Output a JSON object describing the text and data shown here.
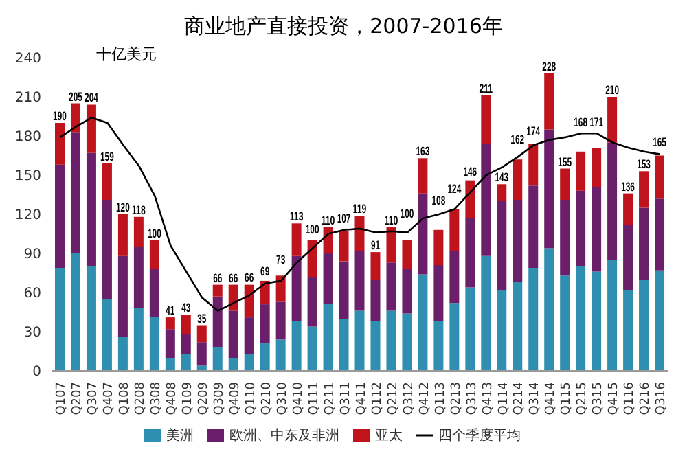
{
  "chart_data": {
    "type": "bar",
    "title": "商业地产直接投资，2007-2016年",
    "ylabel": "十亿美元",
    "categories": [
      "Q107",
      "Q207",
      "Q307",
      "Q407",
      "Q108",
      "Q208",
      "Q308",
      "Q408",
      "Q109",
      "Q209",
      "Q309",
      "Q409",
      "Q110",
      "Q210",
      "Q310",
      "Q410",
      "Q111",
      "Q211",
      "Q311",
      "Q411",
      "Q112",
      "Q212",
      "Q312",
      "Q412",
      "Q113",
      "Q213",
      "Q313",
      "Q413",
      "Q114",
      "Q214",
      "Q314",
      "Q414",
      "Q115",
      "Q215",
      "Q315",
      "Q415",
      "Q116",
      "Q216",
      "Q316"
    ],
    "stacked": true,
    "ylim": [
      0,
      240
    ],
    "yticks": [
      0,
      30,
      60,
      90,
      120,
      150,
      180,
      210,
      240
    ],
    "grid": false,
    "legend": "bottom",
    "series": [
      {
        "name": "美洲",
        "color": "#2e8fb0",
        "values": [
          79,
          90,
          80,
          55,
          26,
          48,
          41,
          10,
          13,
          4,
          18,
          10,
          13,
          21,
          24,
          38,
          34,
          51,
          40,
          46,
          38,
          46,
          44,
          74,
          38,
          52,
          64,
          88,
          62,
          68,
          79,
          94,
          73,
          80,
          76,
          85,
          62,
          70,
          77
        ]
      },
      {
        "name": "欧洲、中东及非洲",
        "color": "#6b1f6b",
        "values": [
          79,
          93,
          87,
          76,
          62,
          47,
          37,
          22,
          15,
          18,
          39,
          36,
          28,
          30,
          29,
          50,
          38,
          39,
          44,
          46,
          32,
          37,
          34,
          62,
          43,
          40,
          53,
          86,
          68,
          63,
          63,
          91,
          58,
          58,
          65,
          90,
          50,
          55,
          55
        ]
      },
      {
        "name": "亚太",
        "color": "#c0141c",
        "values": [
          32,
          22,
          37,
          28,
          32,
          23,
          22,
          9,
          15,
          13,
          9,
          20,
          25,
          18,
          20,
          25,
          28,
          20,
          23,
          27,
          21,
          27,
          22,
          27,
          27,
          32,
          29,
          37,
          13,
          31,
          32,
          43,
          24,
          30,
          30,
          35,
          24,
          28,
          33
        ]
      },
      {
        "name": "四个季度平均",
        "type": "line",
        "color": "#000000",
        "values": [
          179,
          187,
          194,
          190,
          173,
          157,
          134,
          96,
          76,
          56,
          46,
          52,
          58,
          67,
          69,
          83,
          94,
          105,
          108,
          109,
          106,
          107,
          106,
          117,
          120,
          124,
          137,
          150,
          156,
          164,
          173,
          177,
          179,
          182,
          182,
          175,
          171,
          168,
          166
        ]
      }
    ],
    "totals": [
      "190",
      "205",
      "204",
      "159",
      "120",
      "118",
      "100",
      "41",
      "43",
      "35",
      "66",
      "66",
      "66",
      "69",
      "73",
      "113",
      "100",
      "110",
      "107",
      "119",
      "91",
      "110",
      "100",
      "163",
      "108",
      "124",
      "146",
      "211",
      "143",
      "162",
      "174",
      "228",
      "155",
      "168",
      "171",
      "210",
      "136",
      "153",
      "165"
    ]
  }
}
